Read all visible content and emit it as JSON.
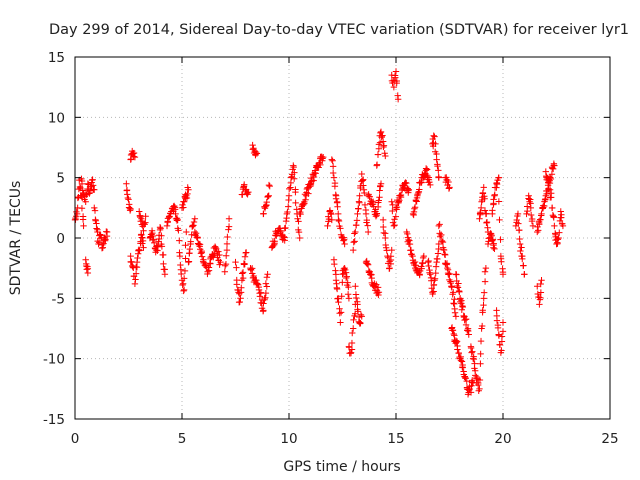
{
  "chart_data": {
    "type": "scatter",
    "title": "Day 299 of 2014, Sidereal Day-to-day VTEC variation (SDTVAR) for receiver lyr1",
    "xlabel": "GPS time / hours",
    "ylabel": "SDTVAR / TECUs",
    "xlim": [
      0,
      25
    ],
    "ylim": [
      -15,
      15
    ],
    "xticks": [
      0,
      5,
      10,
      15,
      20,
      25
    ],
    "yticks": [
      -15,
      -10,
      -5,
      0,
      5,
      10,
      15
    ],
    "xtick_labels": [
      "0",
      "5",
      "10",
      "15",
      "20",
      "25"
    ],
    "ytick_labels": [
      "-15",
      "-10",
      "-5",
      "0",
      "5",
      "10",
      "15"
    ],
    "grid": true,
    "marker": "plus",
    "series": [
      {
        "name": "SDTVAR",
        "color": "#ff0000",
        "segments": [
          {
            "x": [
              0.0,
              0.1,
              0.2,
              0.3,
              0.4
            ],
            "y": [
              1.5,
              2.0,
              4.8,
              3.5,
              1.0
            ]
          },
          {
            "x": [
              0.3,
              0.4,
              0.5,
              0.6,
              0.7,
              0.8,
              0.9
            ],
            "y": [
              4.9,
              3.6,
              3.0,
              4.5,
              3.8,
              4.8,
              4.0
            ]
          },
          {
            "x": [
              0.5,
              0.55,
              0.6
            ],
            "y": [
              -1.8,
              -2.6,
              -2.9
            ]
          },
          {
            "x": [
              0.9,
              1.0,
              1.1,
              1.2,
              1.3,
              1.4,
              1.5
            ],
            "y": [
              2.5,
              1.2,
              -0.5,
              0.2,
              -0.8,
              0.0,
              0.5
            ]
          },
          {
            "x": [
              2.4,
              2.5,
              2.6
            ],
            "y": [
              4.5,
              3.2,
              2.4
            ]
          },
          {
            "x": [
              2.6,
              2.7,
              2.8
            ],
            "y": [
              6.5,
              7.0,
              6.7
            ]
          },
          {
            "x": [
              2.6,
              2.7,
              2.8,
              2.9,
              3.0,
              3.1,
              3.2
            ],
            "y": [
              -1.5,
              -2.4,
              -3.8,
              -2.0,
              -1.0,
              0.3,
              -0.8
            ]
          },
          {
            "x": [
              3.0,
              3.1,
              3.2,
              3.3
            ],
            "y": [
              2.2,
              1.6,
              0.6,
              1.8
            ]
          },
          {
            "x": [
              3.5,
              3.6,
              3.7,
              3.8,
              3.9,
              4.0,
              4.1,
              4.2
            ],
            "y": [
              0.0,
              0.6,
              -0.4,
              -1.0,
              -0.3,
              0.8,
              -1.4,
              -3.0
            ]
          },
          {
            "x": [
              4.3,
              4.4,
              4.5,
              4.6,
              4.7,
              4.8,
              4.9,
              5.0,
              5.1,
              5.2
            ],
            "y": [
              1.0,
              1.8,
              2.2,
              2.6,
              2.0,
              1.5,
              -1.5,
              -3.5,
              -4.3,
              0.5
            ]
          },
          {
            "x": [
              5.0,
              5.1,
              5.2,
              5.3
            ],
            "y": [
              2.5,
              3.0,
              3.5,
              4.0
            ]
          },
          {
            "x": [
              5.3,
              5.4,
              5.5,
              5.6
            ],
            "y": [
              -2.0,
              -0.5,
              1.0,
              1.6
            ]
          },
          {
            "x": [
              5.6,
              5.8,
              6.0,
              6.2,
              6.4,
              6.6,
              6.8
            ],
            "y": [
              0.5,
              -0.5,
              -1.8,
              -2.8,
              -1.5,
              -0.9,
              -2.0
            ]
          },
          {
            "x": [
              7.0,
              7.1,
              7.2
            ],
            "y": [
              -2.8,
              -1.0,
              1.6
            ]
          },
          {
            "x": [
              7.5,
              7.6,
              7.7,
              7.8,
              7.9,
              8.0
            ],
            "y": [
              -2.0,
              -4.3,
              -5.3,
              -3.5,
              -2.2,
              -1.2
            ]
          },
          {
            "x": [
              7.8,
              7.9,
              8.0,
              8.1
            ],
            "y": [
              3.6,
              4.3,
              4.0,
              3.8
            ]
          },
          {
            "x": [
              8.3,
              8.4,
              8.5
            ],
            "y": [
              7.7,
              7.2,
              7.0
            ]
          },
          {
            "x": [
              8.2,
              8.4,
              8.6,
              8.8,
              9.0
            ],
            "y": [
              -2.5,
              -3.5,
              -4.3,
              -6.0,
              -3.0
            ]
          },
          {
            "x": [
              8.8,
              8.9,
              9.0,
              9.1
            ],
            "y": [
              2.0,
              2.6,
              3.4,
              4.3
            ]
          },
          {
            "x": [
              9.2,
              9.4,
              9.6,
              9.8
            ],
            "y": [
              -0.8,
              0.4,
              0.5,
              -0.2
            ]
          },
          {
            "x": [
              9.8,
              9.9,
              10.0,
              10.1,
              10.2,
              10.3,
              10.4,
              10.5
            ],
            "y": [
              0.8,
              2.0,
              3.5,
              5.0,
              6.0,
              3.8,
              1.6,
              0.0
            ]
          },
          {
            "x": [
              10.5,
              10.6,
              10.8,
              11.0,
              11.2,
              11.4,
              11.6
            ],
            "y": [
              2.0,
              2.6,
              3.5,
              4.5,
              5.4,
              6.2,
              6.7
            ]
          },
          {
            "x": [
              11.8,
              11.9,
              12.0
            ],
            "y": [
              1.0,
              2.2,
              1.5
            ]
          },
          {
            "x": [
              12.0,
              12.1,
              12.2,
              12.3,
              12.4,
              12.5,
              12.6
            ],
            "y": [
              6.5,
              5.0,
              3.5,
              2.0,
              0.8,
              0.0,
              -0.5
            ]
          },
          {
            "x": [
              12.1,
              12.2,
              12.3,
              12.4,
              12.5,
              12.6,
              12.7,
              12.8
            ],
            "y": [
              -1.8,
              -3.5,
              -5.0,
              -7.0,
              -3.0,
              -2.5,
              -3.2,
              -5.0
            ]
          },
          {
            "x": [
              12.8,
              12.9,
              13.0,
              13.1
            ],
            "y": [
              -9.0,
              -9.5,
              -7.5,
              -5.5
            ]
          },
          {
            "x": [
              13.0,
              13.1,
              13.2,
              13.3,
              13.4,
              13.5,
              13.6,
              13.7
            ],
            "y": [
              -1.0,
              0.5,
              2.0,
              3.5,
              5.3,
              4.0,
              2.0,
              0.5
            ]
          },
          {
            "x": [
              13.1,
              13.2,
              13.3,
              13.4
            ],
            "y": [
              -4.0,
              -5.5,
              -7.0,
              -6.5
            ]
          },
          {
            "x": [
              13.6,
              13.8,
              14.0,
              14.2
            ],
            "y": [
              -2.0,
              -3.0,
              -4.0,
              -4.5
            ]
          },
          {
            "x": [
              13.7,
              13.9,
              14.1,
              14.3
            ],
            "y": [
              3.5,
              2.8,
              1.9,
              4.5
            ]
          },
          {
            "x": [
              14.1,
              14.2,
              14.3,
              14.4,
              14.5
            ],
            "y": [
              6.0,
              7.4,
              8.8,
              8.0,
              6.8
            ]
          },
          {
            "x": [
              14.4,
              14.5,
              14.6,
              14.7,
              14.8
            ],
            "y": [
              1.5,
              0.0,
              -1.5,
              -2.5,
              -1.0
            ]
          },
          {
            "x": [
              14.8,
              14.9,
              15.0,
              15.1
            ],
            "y": [
              13.5,
              12.5,
              13.8,
              11.5
            ]
          },
          {
            "x": [
              14.8,
              14.9,
              15.0,
              15.2,
              15.4,
              15.6
            ],
            "y": [
              3.0,
              1.0,
              2.5,
              3.5,
              4.5,
              4.0
            ]
          },
          {
            "x": [
              15.5,
              15.7,
              15.9,
              16.1,
              16.3
            ],
            "y": [
              0.5,
              -1.0,
              -2.5,
              -3.0,
              -1.5
            ]
          },
          {
            "x": [
              15.8,
              16.0,
              16.2,
              16.4,
              16.6
            ],
            "y": [
              2.0,
              3.5,
              5.0,
              5.6,
              4.4
            ]
          },
          {
            "x": [
              16.5,
              16.6,
              16.7,
              16.8,
              16.9,
              17.0
            ],
            "y": [
              -2.0,
              -3.0,
              -4.5,
              -3.5,
              -2.0,
              -0.5
            ]
          },
          {
            "x": [
              16.7,
              16.8,
              16.9,
              17.0
            ],
            "y": [
              7.8,
              8.4,
              6.5,
              5.0
            ]
          },
          {
            "x": [
              17.0,
              17.2,
              17.4,
              17.6,
              17.8
            ],
            "y": [
              1.0,
              -0.8,
              -2.5,
              -4.0,
              -6.5
            ]
          },
          {
            "x": [
              17.3,
              17.4,
              17.5
            ],
            "y": [
              5.0,
              4.8,
              4.2
            ]
          },
          {
            "x": [
              17.6,
              17.8,
              18.0,
              18.2,
              18.4,
              18.6
            ],
            "y": [
              -7.5,
              -8.5,
              -10.0,
              -11.5,
              -12.8,
              -12.0
            ]
          },
          {
            "x": [
              17.8,
              18.0,
              18.2,
              18.4
            ],
            "y": [
              -3.0,
              -5.0,
              -6.5,
              -8.0
            ]
          },
          {
            "x": [
              18.5,
              18.7,
              18.9,
              19.0,
              19.1,
              19.2
            ],
            "y": [
              -9.0,
              -11.0,
              -12.5,
              -7.5,
              -5.0,
              -2.5
            ]
          },
          {
            "x": [
              18.9,
              19.0,
              19.1,
              19.2,
              19.3
            ],
            "y": [
              1.6,
              3.0,
              4.2,
              2.0,
              0.5
            ]
          },
          {
            "x": [
              19.3,
              19.4,
              19.5,
              19.6
            ],
            "y": [
              -0.5,
              0.3,
              -0.2,
              -0.9
            ]
          },
          {
            "x": [
              19.5,
              19.6,
              19.7,
              19.8,
              19.9,
              20.0
            ],
            "y": [
              2.0,
              3.5,
              4.5,
              5.0,
              -1.5,
              -3.0
            ]
          },
          {
            "x": [
              19.7,
              19.8,
              19.9,
              20.0
            ],
            "y": [
              -6.0,
              -8.0,
              -9.5,
              -7.0
            ]
          },
          {
            "x": [
              20.6,
              20.7,
              20.8,
              20.9,
              21.0
            ],
            "y": [
              1.0,
              2.0,
              -0.5,
              -1.5,
              -3.0
            ]
          },
          {
            "x": [
              21.1,
              21.2,
              21.3,
              21.4
            ],
            "y": [
              2.0,
              3.5,
              2.5,
              1.0
            ]
          },
          {
            "x": [
              21.6,
              21.7,
              21.8
            ],
            "y": [
              -4.0,
              -5.5,
              -3.5
            ]
          },
          {
            "x": [
              21.6,
              21.8,
              22.0,
              22.2,
              22.4
            ],
            "y": [
              0.5,
              2.0,
              3.5,
              5.0,
              6.0
            ]
          },
          {
            "x": [
              22.0,
              22.1,
              22.2,
              22.3,
              22.4,
              22.5,
              22.6,
              22.7,
              22.8
            ],
            "y": [
              5.5,
              4.8,
              4.0,
              2.5,
              1.0,
              -0.5,
              0.0,
              2.2,
              1.0
            ]
          }
        ]
      }
    ]
  }
}
